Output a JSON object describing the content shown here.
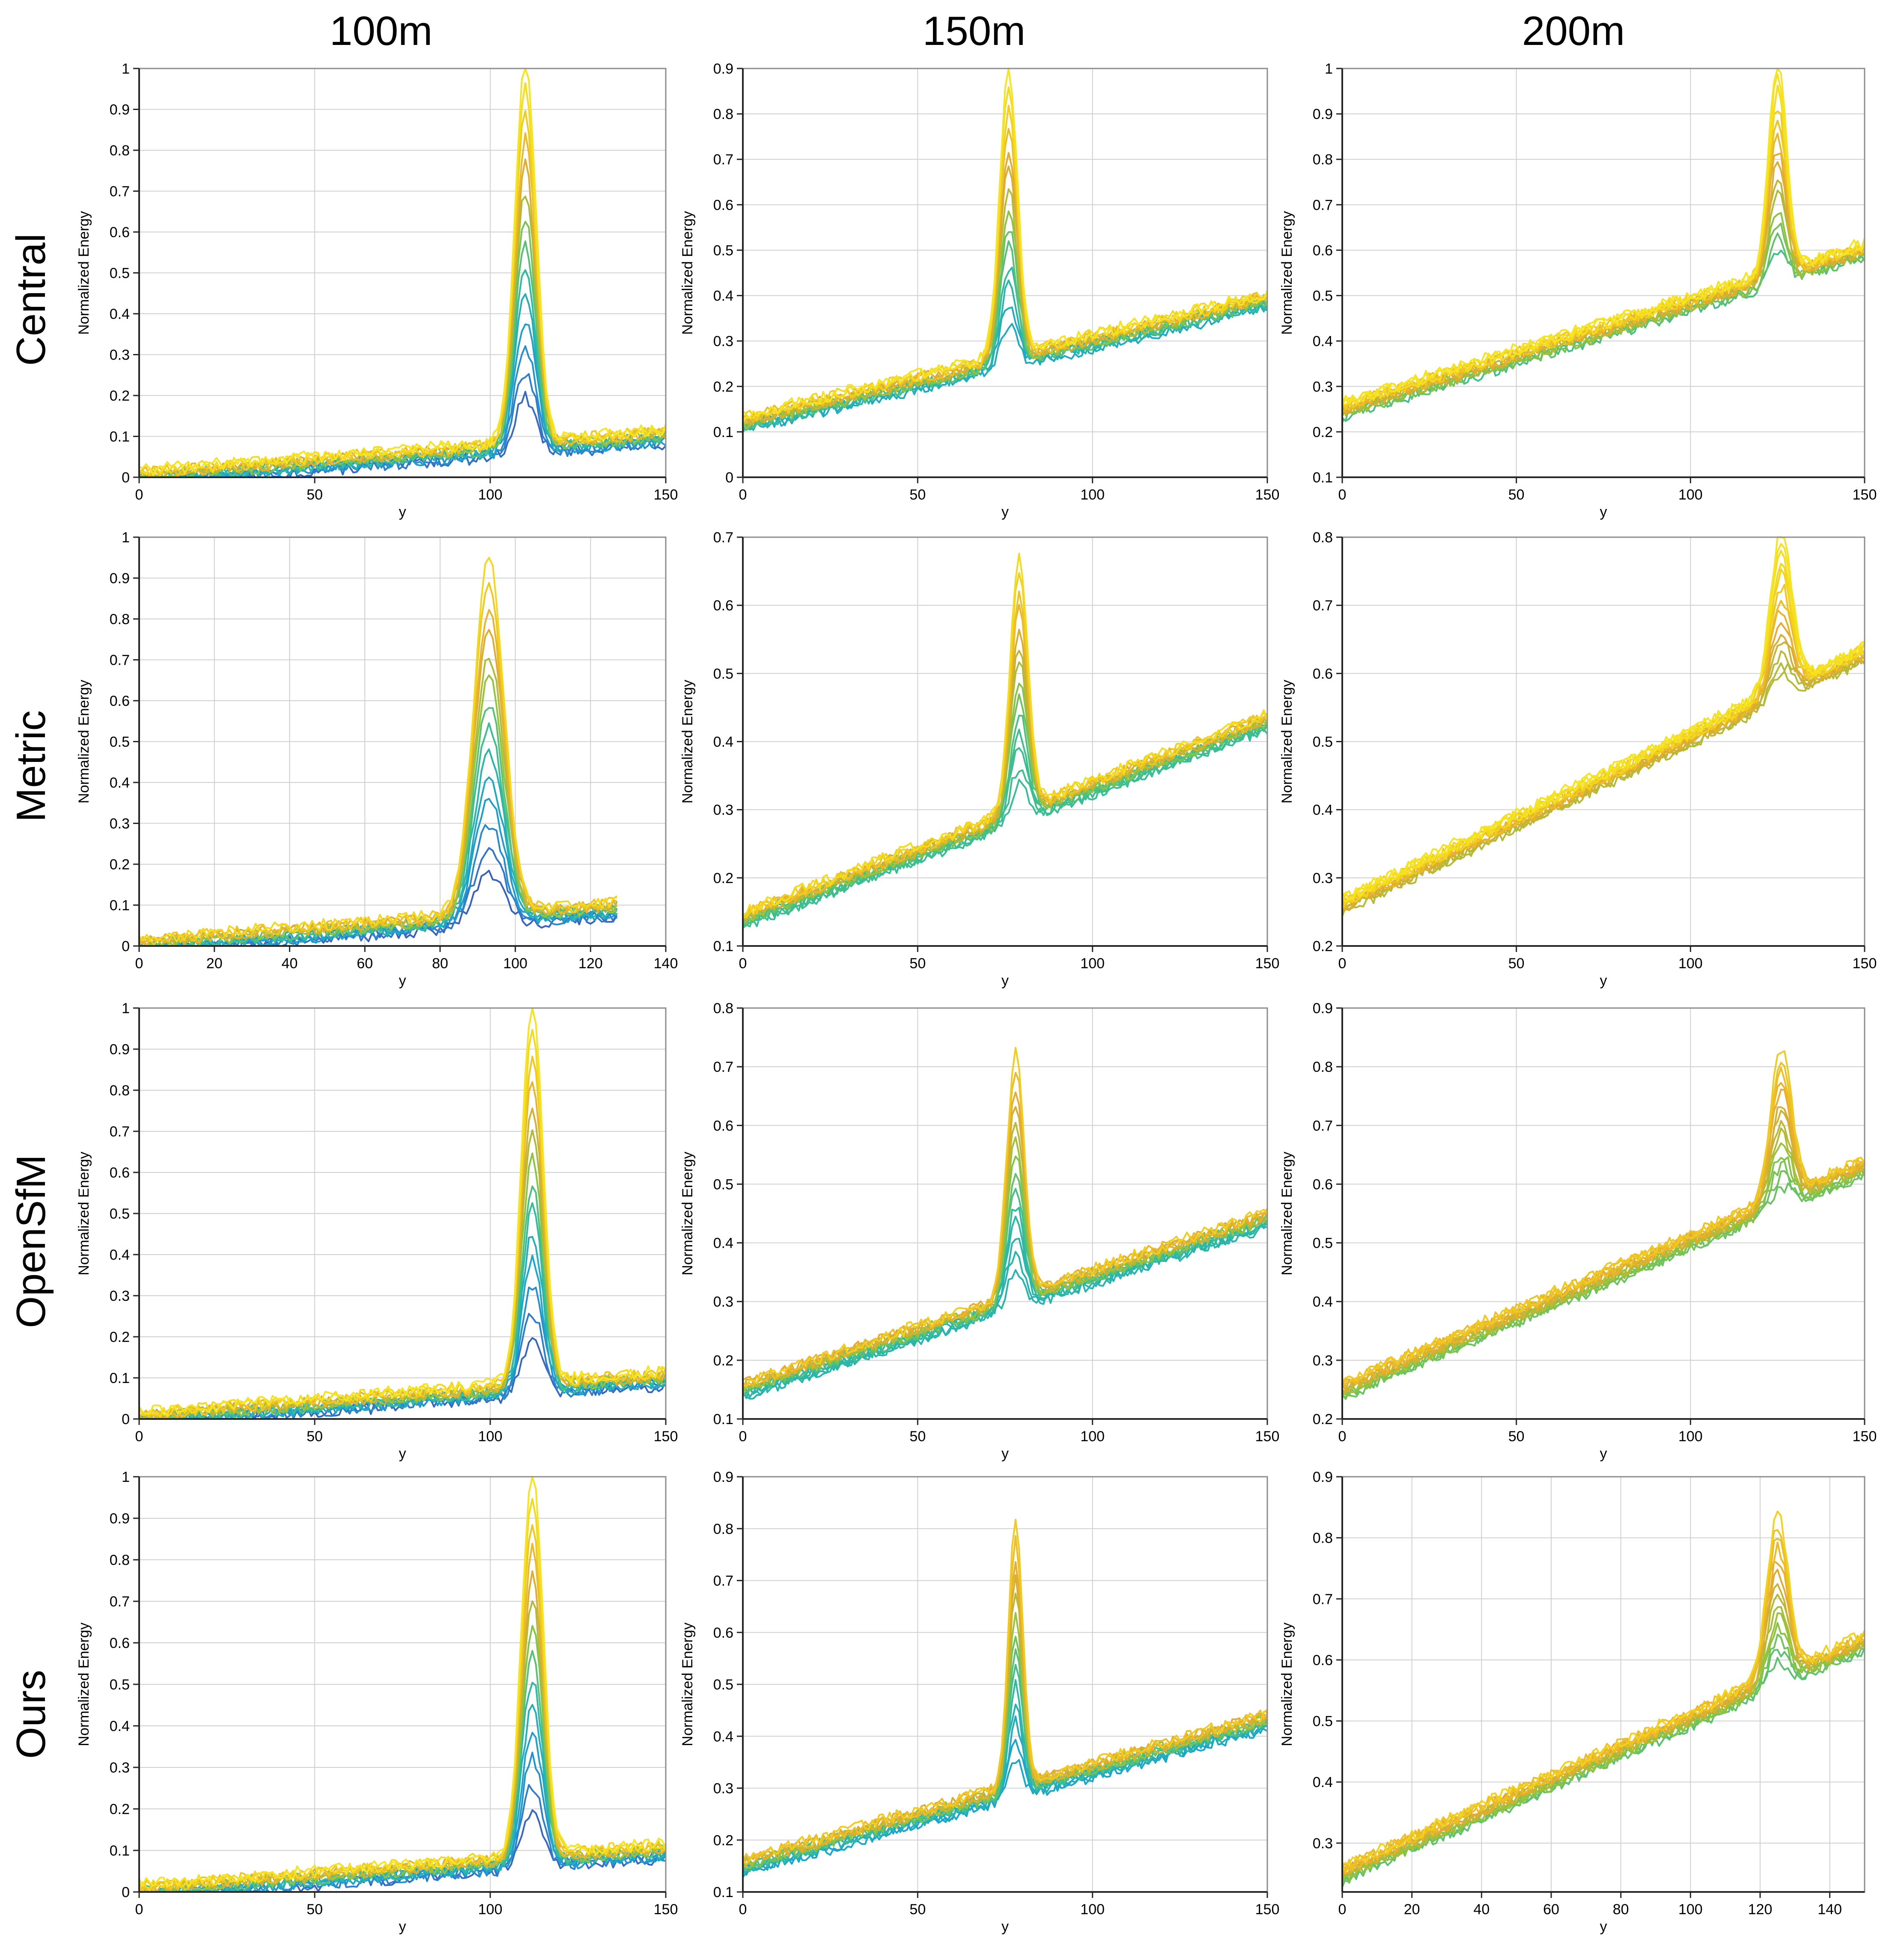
{
  "figure": {
    "column_titles": [
      "100m",
      "150m",
      "200m"
    ],
    "row_titles": [
      "Central",
      "Metric",
      "OpenSfM",
      "Ours"
    ]
  },
  "colormap": [
    "#3e2c84",
    "#3f4fb0",
    "#2e7fd0",
    "#1aa6cc",
    "#31bd9c",
    "#8fc63a",
    "#e8a92e",
    "#f2d31a",
    "#f9f020"
  ],
  "chart_data": [
    {
      "type": "line",
      "title": "100m",
      "row": "Central",
      "xlabel": "y",
      "ylabel": "Normalized Energy",
      "xlim": [
        0,
        150
      ],
      "xticks": [
        0,
        50,
        100,
        150
      ],
      "ylim": [
        0,
        1
      ],
      "yticks": [
        0,
        0.1,
        0.2,
        0.3,
        0.4,
        0.5,
        0.6,
        0.7,
        0.8,
        0.9,
        1
      ],
      "baseline_start": 0.0,
      "baseline_end": 0.1,
      "peak_x": 110,
      "peak_max": 1.0,
      "peak_width": 3,
      "n_traces": 14
    },
    {
      "type": "line",
      "title": "150m",
      "row": "Central",
      "xlabel": "y",
      "ylabel": "Normalized Energy",
      "xlim": [
        0,
        150
      ],
      "xticks": [
        0,
        50,
        100,
        150
      ],
      "ylim": [
        0,
        0.9
      ],
      "yticks": [
        0,
        0.1,
        0.2,
        0.3,
        0.4,
        0.5,
        0.6,
        0.7,
        0.8,
        0.9
      ],
      "baseline_start": 0.12,
      "baseline_end": 0.39,
      "peak_x": 76,
      "peak_max": 0.88,
      "peak_width": 2.5,
      "n_traces": 14
    },
    {
      "type": "line",
      "title": "200m",
      "row": "Central",
      "xlabel": "y",
      "ylabel": "Normalized Energy",
      "xlim": [
        0,
        150
      ],
      "xticks": [
        0,
        50,
        100,
        150
      ],
      "ylim": [
        0.1,
        1
      ],
      "yticks": [
        0.1,
        0.2,
        0.3,
        0.4,
        0.5,
        0.6,
        0.7,
        0.8,
        0.9,
        1
      ],
      "baseline_start": 0.25,
      "baseline_end": 0.6,
      "peak_x": 125,
      "peak_max": 1.0,
      "peak_width": 2.5,
      "n_traces": 14
    },
    {
      "type": "line",
      "title": "100m",
      "row": "Metric",
      "xlabel": "y",
      "ylabel": "Normalized Energy",
      "xlim": [
        0,
        140
      ],
      "xticks": [
        0,
        20,
        40,
        60,
        80,
        100,
        120,
        140
      ],
      "ylim": [
        0,
        1
      ],
      "yticks": [
        0,
        0.1,
        0.2,
        0.3,
        0.4,
        0.5,
        0.6,
        0.7,
        0.8,
        0.9,
        1
      ],
      "baseline_start": 0.0,
      "baseline_end": 0.1,
      "peak_x": 93,
      "peak_max": 0.93,
      "peak_width": 4,
      "n_traces": 14
    },
    {
      "type": "line",
      "title": "150m",
      "row": "Metric",
      "xlabel": "y",
      "ylabel": "Normalized Energy",
      "xlim": [
        0,
        150
      ],
      "xticks": [
        0,
        50,
        100,
        150
      ],
      "ylim": [
        0.1,
        0.7
      ],
      "yticks": [
        0.1,
        0.2,
        0.3,
        0.4,
        0.5,
        0.6,
        0.7
      ],
      "baseline_start": 0.14,
      "baseline_end": 0.43,
      "peak_x": 79,
      "peak_max": 0.66,
      "peak_width": 2.5,
      "n_traces": 14
    },
    {
      "type": "line",
      "title": "200m",
      "row": "Metric",
      "xlabel": "y",
      "ylabel": "Normalized Energy",
      "xlim": [
        0,
        150
      ],
      "xticks": [
        0,
        50,
        100,
        150
      ],
      "ylim": [
        0.2,
        0.8
      ],
      "yticks": [
        0.2,
        0.3,
        0.4,
        0.5,
        0.6,
        0.7,
        0.8
      ],
      "baseline_start": 0.26,
      "baseline_end": 0.63,
      "peak_x": 126,
      "peak_max": 0.8,
      "peak_width": 3,
      "n_traces": 14
    },
    {
      "type": "line",
      "title": "100m",
      "row": "OpenSfM",
      "xlabel": "y",
      "ylabel": "Normalized Energy",
      "xlim": [
        0,
        150
      ],
      "xticks": [
        0,
        50,
        100,
        150
      ],
      "ylim": [
        0,
        1
      ],
      "yticks": [
        0,
        0.1,
        0.2,
        0.3,
        0.4,
        0.5,
        0.6,
        0.7,
        0.8,
        0.9,
        1
      ],
      "baseline_start": 0.0,
      "baseline_end": 0.1,
      "peak_x": 112,
      "peak_max": 1.0,
      "peak_width": 3,
      "n_traces": 14
    },
    {
      "type": "line",
      "title": "150m",
      "row": "OpenSfM",
      "xlabel": "y",
      "ylabel": "Normalized Energy",
      "xlim": [
        0,
        150
      ],
      "xticks": [
        0,
        50,
        100,
        150
      ],
      "ylim": [
        0.1,
        0.8
      ],
      "yticks": [
        0.1,
        0.2,
        0.3,
        0.4,
        0.5,
        0.6,
        0.7,
        0.8
      ],
      "baseline_start": 0.15,
      "baseline_end": 0.44,
      "peak_x": 78,
      "peak_max": 0.71,
      "peak_width": 2.5,
      "n_traces": 14
    },
    {
      "type": "line",
      "title": "200m",
      "row": "OpenSfM",
      "xlabel": "y",
      "ylabel": "Normalized Energy",
      "xlim": [
        0,
        150
      ],
      "xticks": [
        0,
        50,
        100,
        150
      ],
      "ylim": [
        0.2,
        0.9
      ],
      "yticks": [
        0.2,
        0.3,
        0.4,
        0.5,
        0.6,
        0.7,
        0.8,
        0.9
      ],
      "baseline_start": 0.25,
      "baseline_end": 0.63,
      "peak_x": 126,
      "peak_max": 0.82,
      "peak_width": 3,
      "n_traces": 14
    },
    {
      "type": "line",
      "title": "100m",
      "row": "Ours",
      "xlabel": "y",
      "ylabel": "Normalized Energy",
      "xlim": [
        0,
        150
      ],
      "xticks": [
        0,
        50,
        100,
        150
      ],
      "ylim": [
        0,
        1
      ],
      "yticks": [
        0,
        0.1,
        0.2,
        0.3,
        0.4,
        0.5,
        0.6,
        0.7,
        0.8,
        0.9,
        1
      ],
      "baseline_start": 0.0,
      "baseline_end": 0.1,
      "peak_x": 112,
      "peak_max": 1.0,
      "peak_width": 3,
      "n_traces": 14
    },
    {
      "type": "line",
      "title": "150m",
      "row": "Ours",
      "xlabel": "y",
      "ylabel": "Normalized Energy",
      "xlim": [
        0,
        150
      ],
      "xticks": [
        0,
        50,
        100,
        150
      ],
      "ylim": [
        0.1,
        0.9
      ],
      "yticks": [
        0.1,
        0.2,
        0.3,
        0.4,
        0.5,
        0.6,
        0.7,
        0.8,
        0.9
      ],
      "baseline_start": 0.15,
      "baseline_end": 0.43,
      "peak_x": 78,
      "peak_max": 0.8,
      "peak_width": 2,
      "n_traces": 14
    },
    {
      "type": "line",
      "title": "200m",
      "row": "Ours",
      "xlabel": "y",
      "ylabel": "Normalized Energy",
      "xlim": [
        0,
        150
      ],
      "xticks": [
        0,
        20,
        40,
        60,
        80,
        100,
        120,
        140
      ],
      "ylim": [
        0.22,
        0.9
      ],
      "yticks": [
        0.3,
        0.4,
        0.5,
        0.6,
        0.7,
        0.8,
        0.9
      ],
      "baseline_start": 0.25,
      "baseline_end": 0.63,
      "peak_x": 125,
      "peak_max": 0.83,
      "peak_width": 3,
      "n_traces": 14
    }
  ]
}
